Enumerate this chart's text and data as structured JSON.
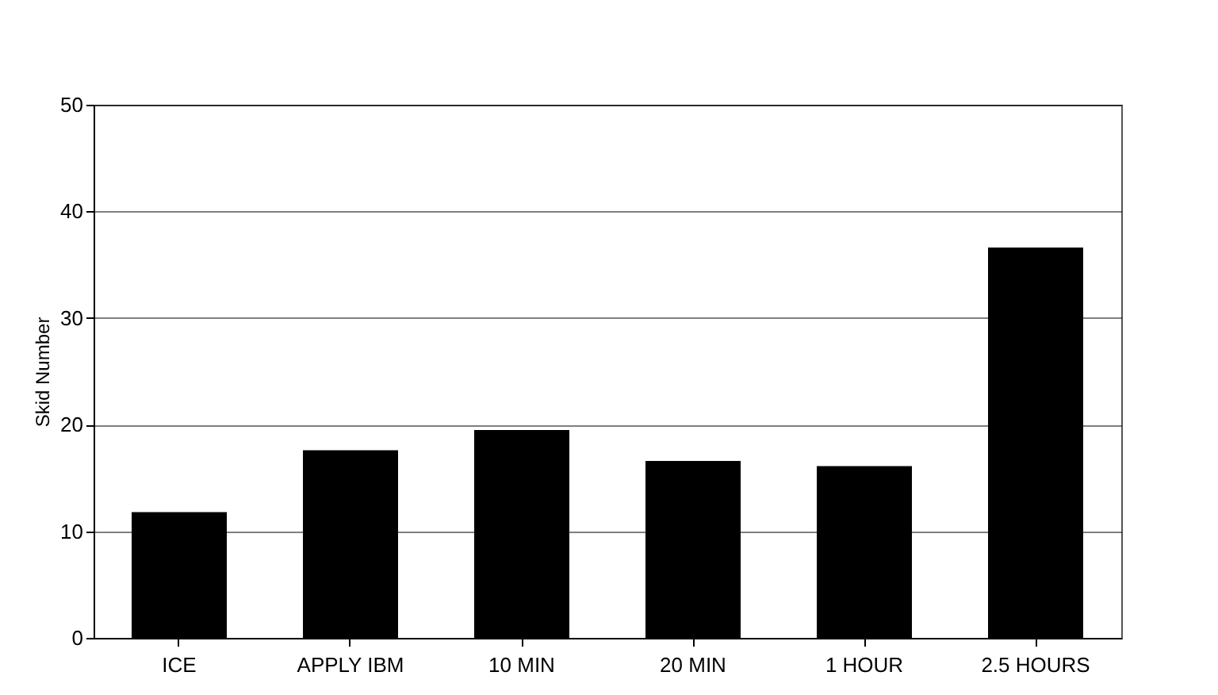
{
  "chart_data": {
    "type": "bar",
    "ylabel": "Skid Number",
    "categories": [
      "ICE",
      "APPLY IBM",
      "10 MIN",
      "20 MIN",
      "1 HOUR",
      "2.5 HOURS"
    ],
    "values": [
      11.8,
      17.6,
      19.5,
      16.6,
      16.1,
      36.6
    ],
    "color": "#000000",
    "ylim": [
      0,
      50
    ],
    "yticks": [
      0,
      10,
      20,
      30,
      40,
      50
    ],
    "grid": "y"
  }
}
